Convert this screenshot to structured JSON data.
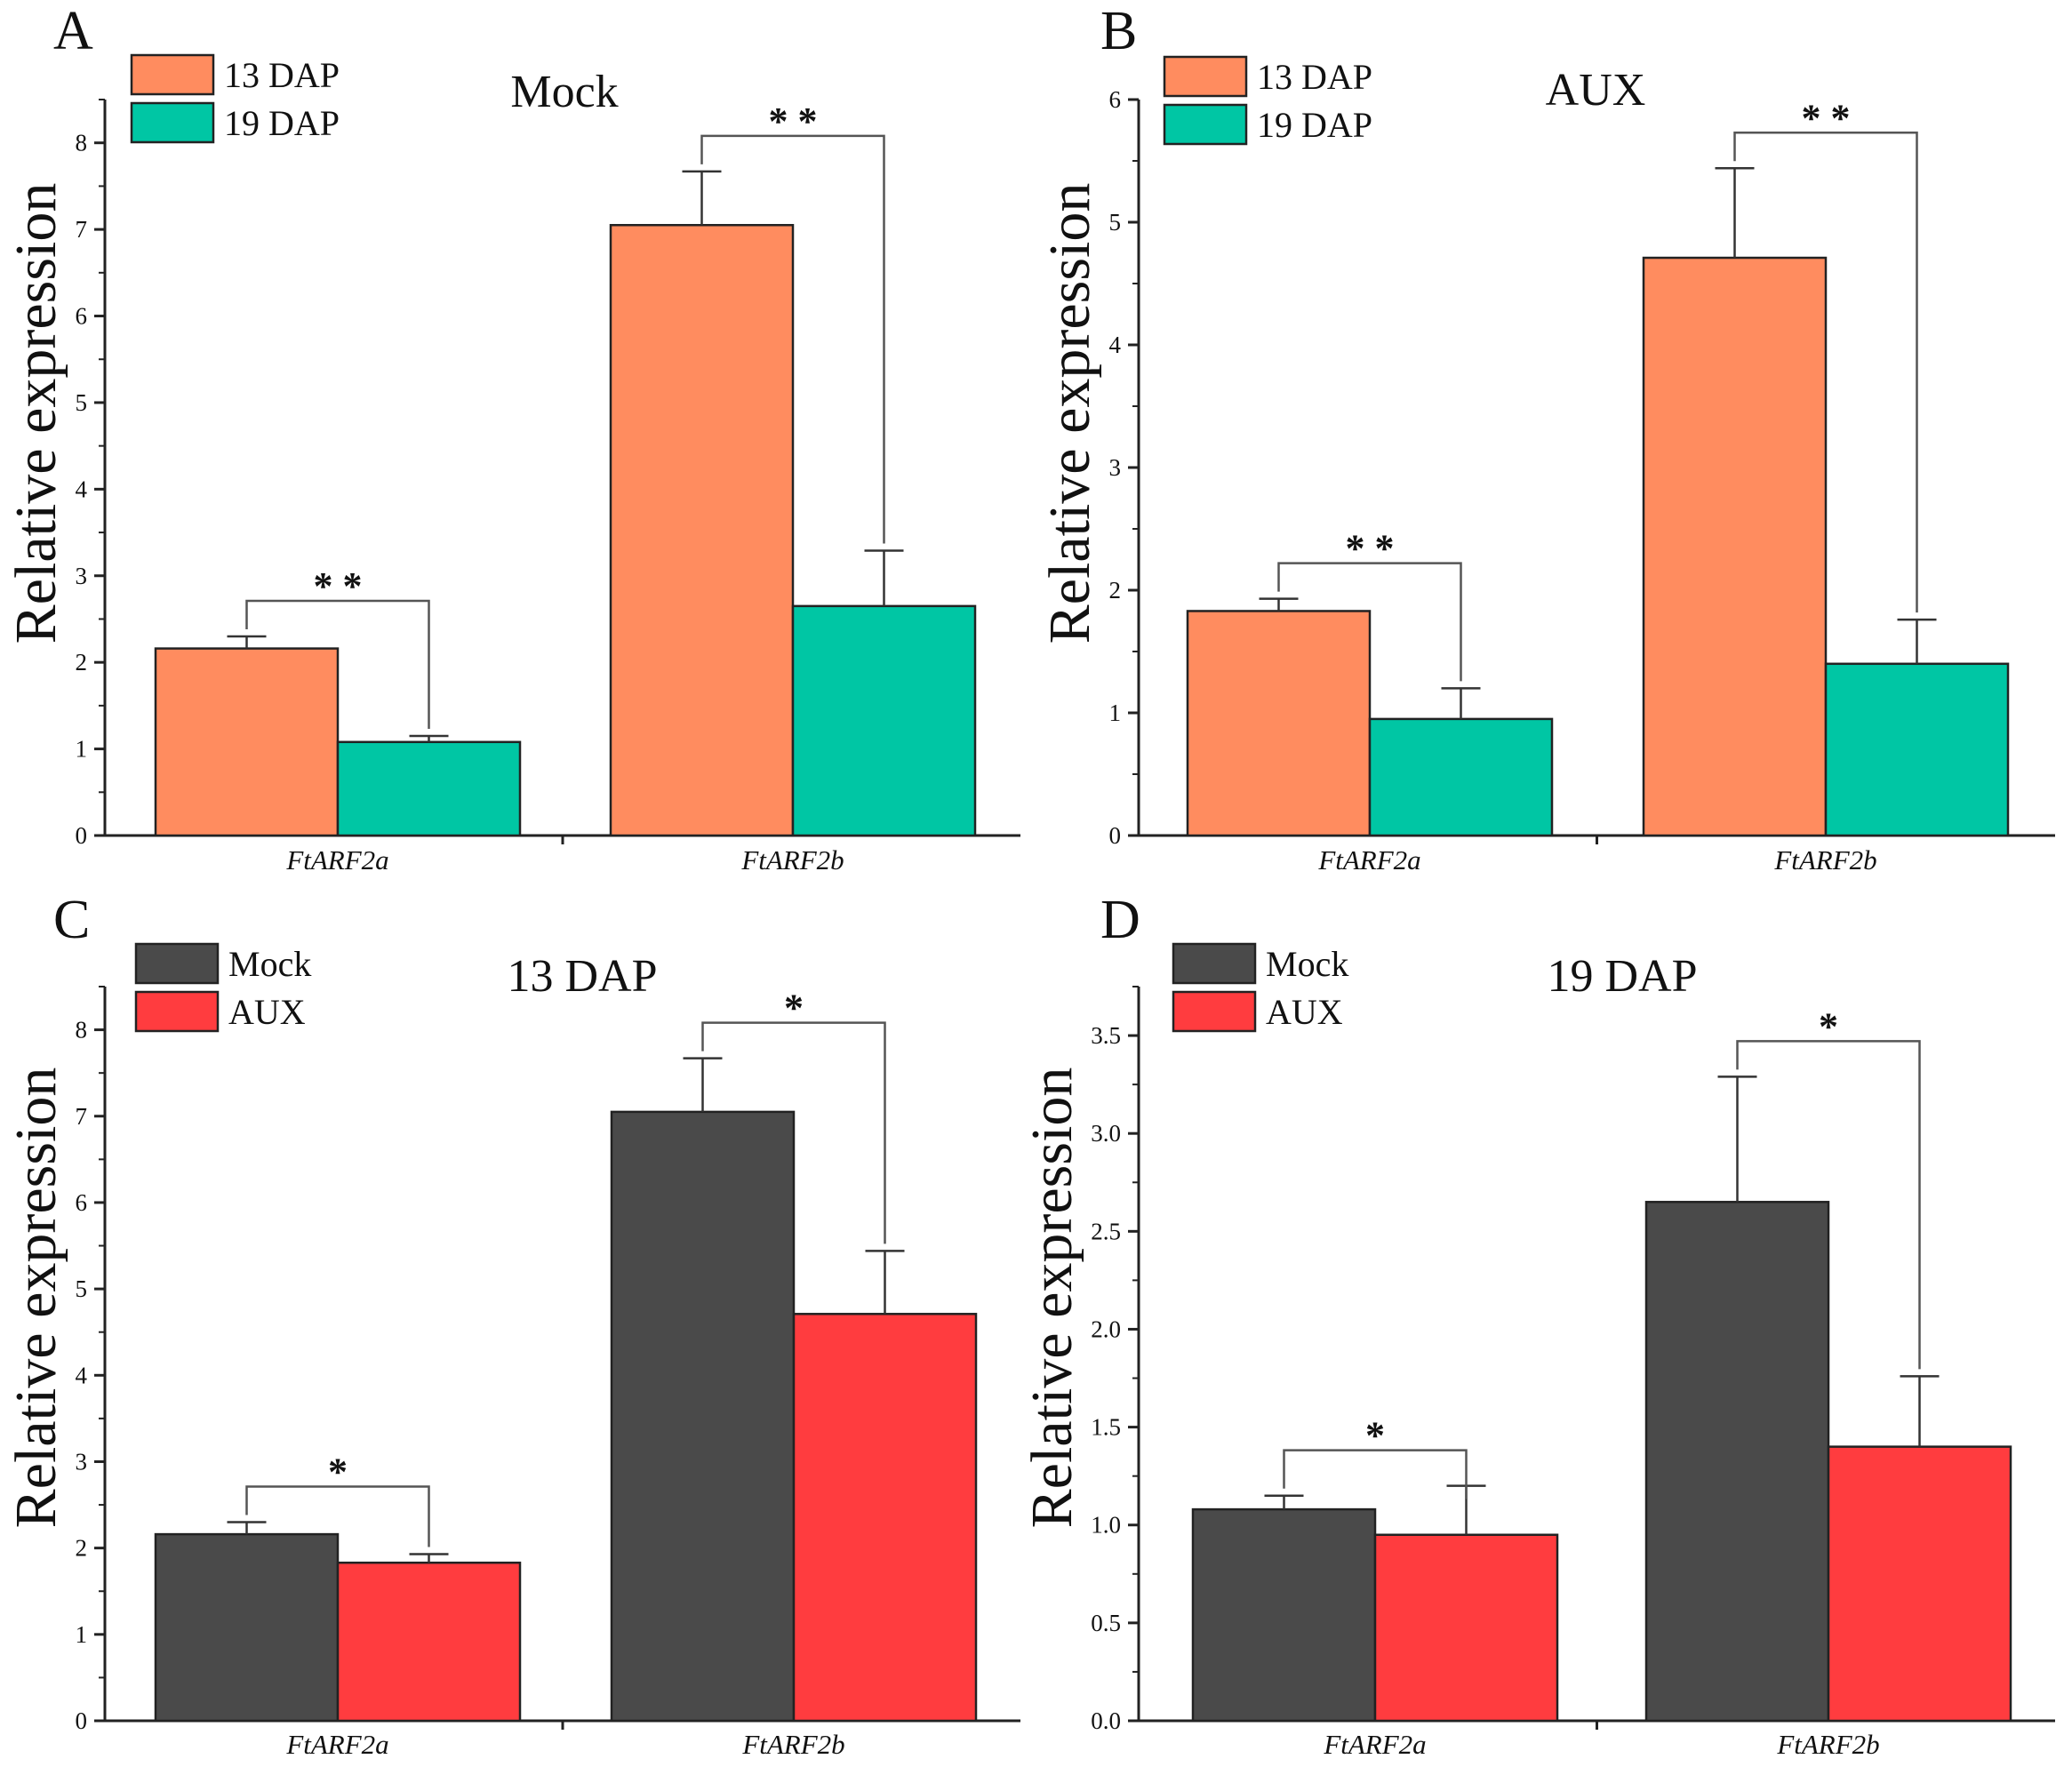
{
  "chart_data": [
    {
      "type": "bar",
      "panel": "A",
      "title": "Mock",
      "ylabel": "Relative expression",
      "xlabel": "",
      "categories": [
        "FtARF2a",
        "FtARF2b"
      ],
      "ylim": [
        0,
        8.5
      ],
      "yticks": [
        0,
        1,
        2,
        3,
        4,
        5,
        6,
        7,
        8
      ],
      "ytick_labels": [
        "0",
        "1",
        "2",
        "3",
        "4",
        "5",
        "6",
        "7",
        "8"
      ],
      "series": [
        {
          "name": "13 DAP",
          "color": "#FF8C5F",
          "values": [
            2.16,
            7.05
          ],
          "errors": [
            0.14,
            0.62
          ]
        },
        {
          "name": "19 DAP",
          "color": "#00C6A4",
          "values": [
            1.08,
            2.65
          ],
          "errors": [
            0.07,
            0.64
          ]
        }
      ],
      "significance": [
        "* *",
        "* *"
      ],
      "legend_position": "top-left"
    },
    {
      "type": "bar",
      "panel": "B",
      "title": "AUX",
      "ylabel": "Relative expression",
      "xlabel": "",
      "categories": [
        "FtARF2a",
        "FtARF2b"
      ],
      "ylim": [
        0,
        6
      ],
      "yticks": [
        0,
        1,
        2,
        3,
        4,
        5,
        6
      ],
      "ytick_labels": [
        "0",
        "1",
        "2",
        "3",
        "4",
        "5",
        "6"
      ],
      "series": [
        {
          "name": "13 DAP",
          "color": "#FF8C5F",
          "values": [
            1.83,
            4.71
          ],
          "errors": [
            0.1,
            0.73
          ]
        },
        {
          "name": "19 DAP",
          "color": "#00C6A4",
          "values": [
            0.95,
            1.4
          ],
          "errors": [
            0.25,
            0.36
          ]
        }
      ],
      "significance": [
        "* *",
        "* *"
      ],
      "legend_position": "top-left"
    },
    {
      "type": "bar",
      "panel": "C",
      "title": "13 DAP",
      "ylabel": "Relative expression",
      "xlabel": "",
      "categories": [
        "FtARF2a",
        "FtARF2b"
      ],
      "ylim": [
        0,
        8.5
      ],
      "yticks": [
        0,
        1,
        2,
        3,
        4,
        5,
        6,
        7,
        8
      ],
      "ytick_labels": [
        "0",
        "1",
        "2",
        "3",
        "4",
        "5",
        "6",
        "7",
        "8"
      ],
      "series": [
        {
          "name": "Mock",
          "color": "#4A4A4A",
          "values": [
            2.16,
            7.05
          ],
          "errors": [
            0.14,
            0.62
          ]
        },
        {
          "name": "AUX",
          "color": "#FF3C3F",
          "values": [
            1.83,
            4.71
          ],
          "errors": [
            0.1,
            0.73
          ]
        }
      ],
      "significance": [
        "*",
        "*"
      ],
      "legend_position": "top-left"
    },
    {
      "type": "bar",
      "panel": "D",
      "title": "19 DAP",
      "ylabel": "Relative expression",
      "xlabel": "",
      "categories": [
        "FtARF2a",
        "FtARF2b"
      ],
      "ylim": [
        0,
        3.75
      ],
      "yticks": [
        0,
        0.5,
        1,
        1.5,
        2,
        2.5,
        3,
        3.5
      ],
      "ytick_labels": [
        "0.0",
        "0.5",
        "1.0",
        "1.5",
        "2.0",
        "2.5",
        "3.0",
        "3.5"
      ],
      "series": [
        {
          "name": "Mock",
          "color": "#4A4A4A",
          "values": [
            1.08,
            2.65
          ],
          "errors": [
            0.07,
            0.64
          ]
        },
        {
          "name": "AUX",
          "color": "#FF3C3F",
          "values": [
            0.95,
            1.4
          ],
          "errors": [
            0.25,
            0.36
          ]
        }
      ],
      "significance": [
        "*",
        "*"
      ],
      "legend_position": "top-left"
    }
  ]
}
